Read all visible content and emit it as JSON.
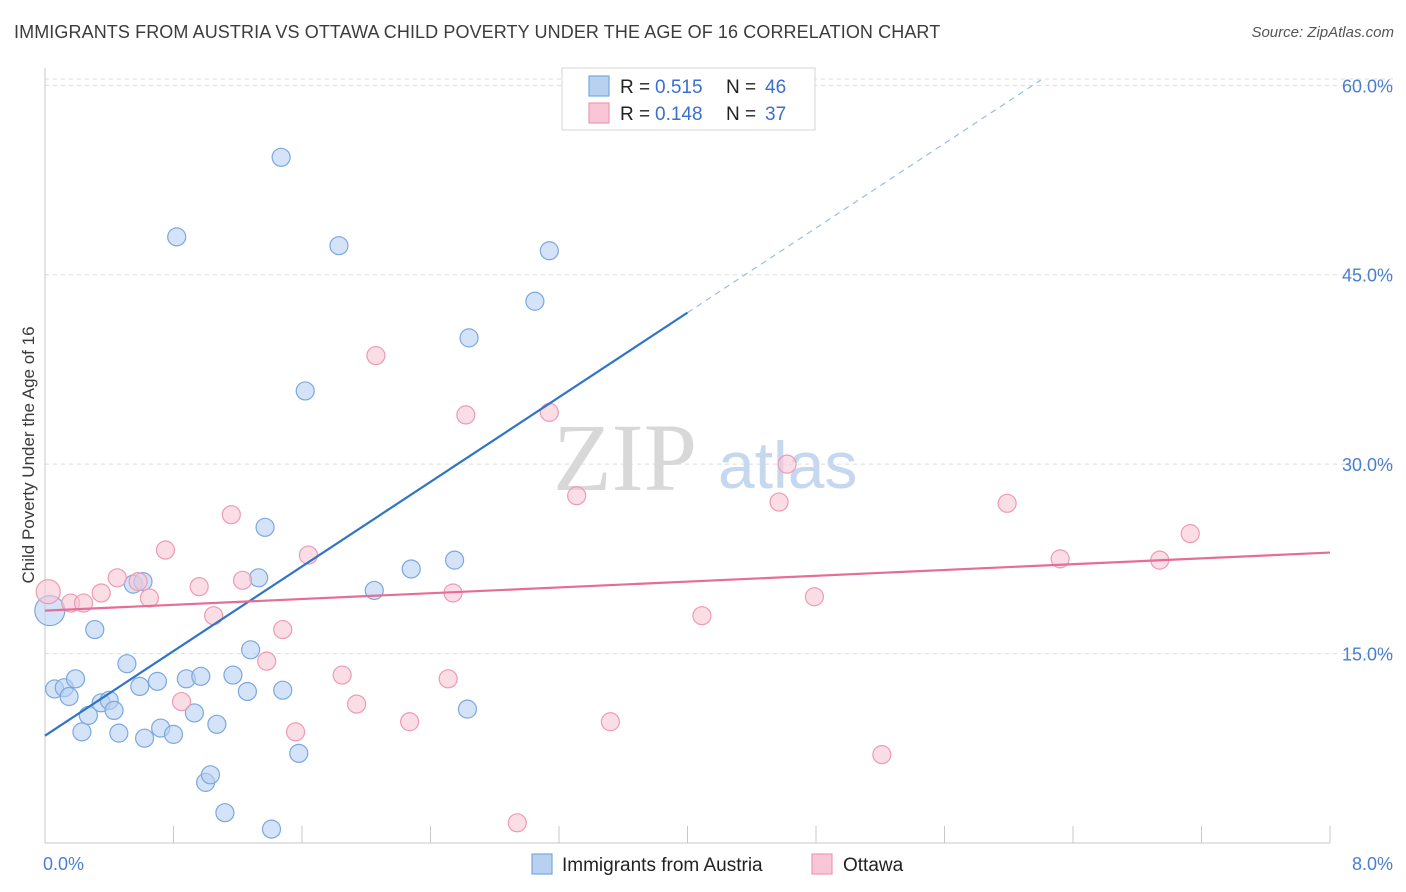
{
  "header": {
    "title": "IMMIGRANTS FROM AUSTRIA VS OTTAWA CHILD POVERTY UNDER THE AGE OF 16 CORRELATION CHART",
    "source": "Source: ZipAtlas.com"
  },
  "watermark": {
    "zip": "ZIP",
    "atlas": "atlas"
  },
  "chart_data": {
    "type": "scatter",
    "title": "IMMIGRANTS FROM AUSTRIA VS OTTAWA CHILD POVERTY UNDER THE AGE OF 16 CORRELATION CHART",
    "xlabel": "",
    "ylabel": "Child Poverty Under the Age of 16",
    "xlim": [
      0,
      8
    ],
    "ylim": [
      0,
      60.5
    ],
    "x_tick_labels": [
      "0.0%",
      "8.0%"
    ],
    "y_ticks": [
      {
        "value": 15,
        "label": "15.0%"
      },
      {
        "value": 30,
        "label": "30.0%"
      },
      {
        "value": 45,
        "label": "45.0%"
      },
      {
        "value": 60,
        "label": "60.0%"
      }
    ],
    "grid": true,
    "legend": {
      "position": "top-center",
      "entries": [
        {
          "r_label": "R =",
          "r_value": "0.515",
          "n_label": "N =",
          "n_value": "46"
        },
        {
          "r_label": "R =",
          "r_value": "0.148",
          "n_label": "N =",
          "n_value": "37"
        }
      ]
    },
    "series": [
      {
        "name": "Immigrants from Austria",
        "color": "#7aa8e0",
        "fill": "#b8d1f1",
        "line_color": "#2f74c8",
        "trend": {
          "x0": 0.0,
          "y0": 8.5,
          "x1": 4.0,
          "y1": 42.0,
          "dash_to_x": 6.2
        },
        "points": [
          [
            0.03,
            18.4
          ],
          [
            0.06,
            12.2
          ],
          [
            0.12,
            12.3
          ],
          [
            0.15,
            11.6
          ],
          [
            0.19,
            13.0
          ],
          [
            0.23,
            8.8
          ],
          [
            0.27,
            10.1
          ],
          [
            0.31,
            16.9
          ],
          [
            0.35,
            11.1
          ],
          [
            0.4,
            11.3
          ],
          [
            0.43,
            10.5
          ],
          [
            0.46,
            8.7
          ],
          [
            0.51,
            14.2
          ],
          [
            0.55,
            20.5
          ],
          [
            0.59,
            12.4
          ],
          [
            0.61,
            20.7
          ],
          [
            0.62,
            8.3
          ],
          [
            0.7,
            12.8
          ],
          [
            0.72,
            9.1
          ],
          [
            0.8,
            8.6
          ],
          [
            0.82,
            48.0
          ],
          [
            0.88,
            13.0
          ],
          [
            0.93,
            10.3
          ],
          [
            0.97,
            13.2
          ],
          [
            1.0,
            4.8
          ],
          [
            1.03,
            5.4
          ],
          [
            1.07,
            9.4
          ],
          [
            1.12,
            2.4
          ],
          [
            1.17,
            13.3
          ],
          [
            1.26,
            12.0
          ],
          [
            1.28,
            15.3
          ],
          [
            1.33,
            21.0
          ],
          [
            1.37,
            25.0
          ],
          [
            1.41,
            1.1
          ],
          [
            1.47,
            54.3
          ],
          [
            1.48,
            12.1
          ],
          [
            1.58,
            7.1
          ],
          [
            1.62,
            35.8
          ],
          [
            1.83,
            47.3
          ],
          [
            2.05,
            20.0
          ],
          [
            2.28,
            21.7
          ],
          [
            2.55,
            22.4
          ],
          [
            2.63,
            10.6
          ],
          [
            2.64,
            40.0
          ],
          [
            3.05,
            42.9
          ],
          [
            3.14,
            46.9
          ]
        ]
      },
      {
        "name": "Ottawa",
        "color": "#ee9ab5",
        "fill": "#f8c6d6",
        "line_color": "#e56d98",
        "trend": {
          "x0": 0.0,
          "y0": 18.4,
          "x1": 8.0,
          "y1": 23.0
        },
        "points": [
          [
            0.02,
            19.9
          ],
          [
            0.16,
            19.0
          ],
          [
            0.24,
            19.0
          ],
          [
            0.35,
            19.8
          ],
          [
            0.45,
            21.0
          ],
          [
            0.58,
            20.7
          ],
          [
            0.65,
            19.4
          ],
          [
            0.75,
            23.2
          ],
          [
            0.85,
            11.2
          ],
          [
            0.96,
            20.3
          ],
          [
            1.05,
            18.0
          ],
          [
            1.16,
            26.0
          ],
          [
            1.23,
            20.8
          ],
          [
            1.38,
            14.4
          ],
          [
            1.48,
            16.9
          ],
          [
            1.56,
            8.8
          ],
          [
            1.64,
            22.8
          ],
          [
            1.85,
            13.3
          ],
          [
            1.94,
            11.0
          ],
          [
            2.06,
            38.6
          ],
          [
            2.27,
            9.6
          ],
          [
            2.51,
            13.0
          ],
          [
            2.54,
            19.8
          ],
          [
            2.62,
            33.9
          ],
          [
            2.94,
            1.6
          ],
          [
            3.14,
            34.1
          ],
          [
            3.31,
            27.5
          ],
          [
            3.52,
            9.6
          ],
          [
            4.09,
            18.0
          ],
          [
            4.57,
            27.0
          ],
          [
            4.62,
            30.0
          ],
          [
            4.79,
            19.5
          ],
          [
            5.21,
            7.0
          ],
          [
            5.99,
            26.9
          ],
          [
            6.32,
            22.5
          ],
          [
            6.94,
            22.4
          ],
          [
            7.13,
            24.5
          ]
        ]
      }
    ]
  },
  "legend_bottom": {
    "items": [
      "Immigrants from Austria",
      "Ottawa"
    ]
  }
}
